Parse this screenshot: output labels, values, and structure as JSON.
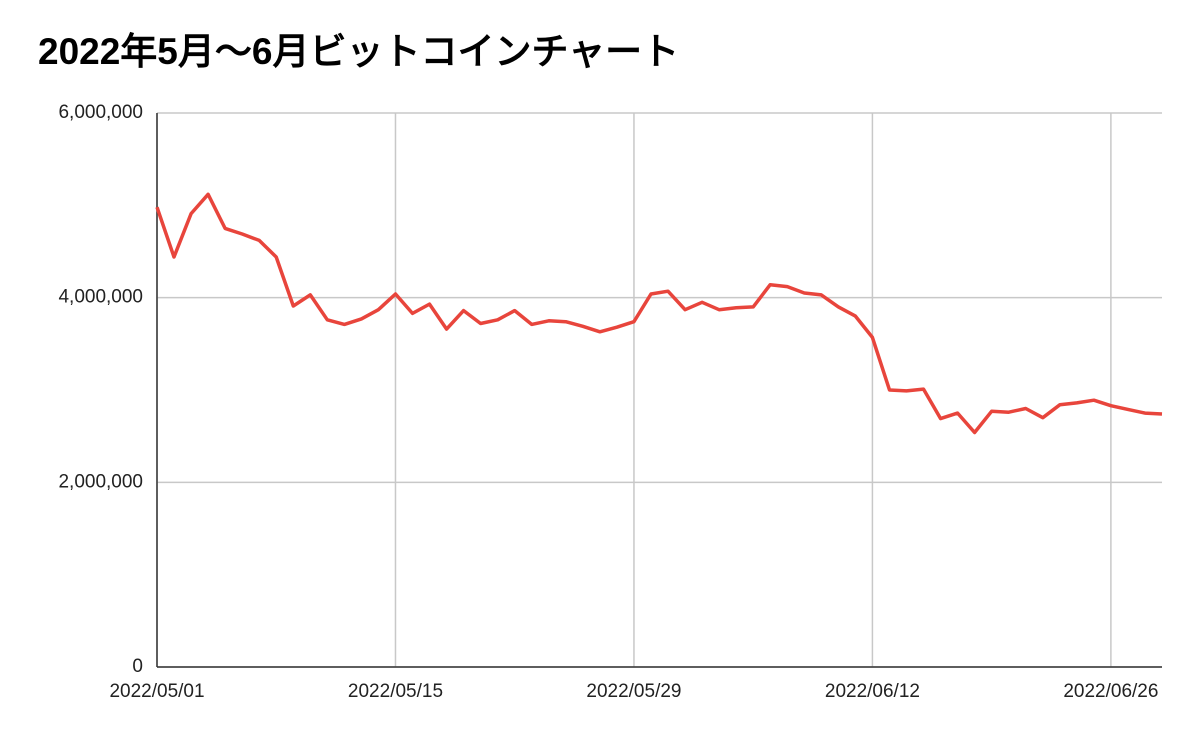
{
  "chart_data": {
    "type": "line",
    "title": "2022年5月〜6月ビットコインチャート",
    "x": [
      "2022/05/01",
      "2022/05/02",
      "2022/05/03",
      "2022/05/04",
      "2022/05/05",
      "2022/05/06",
      "2022/05/07",
      "2022/05/08",
      "2022/05/09",
      "2022/05/10",
      "2022/05/11",
      "2022/05/12",
      "2022/05/13",
      "2022/05/14",
      "2022/05/15",
      "2022/05/16",
      "2022/05/17",
      "2022/05/18",
      "2022/05/19",
      "2022/05/20",
      "2022/05/21",
      "2022/05/22",
      "2022/05/23",
      "2022/05/24",
      "2022/05/25",
      "2022/05/26",
      "2022/05/27",
      "2022/05/28",
      "2022/05/29",
      "2022/05/30",
      "2022/05/31",
      "2022/06/01",
      "2022/06/02",
      "2022/06/03",
      "2022/06/04",
      "2022/06/05",
      "2022/06/06",
      "2022/06/07",
      "2022/06/08",
      "2022/06/09",
      "2022/06/10",
      "2022/06/11",
      "2022/06/12",
      "2022/06/13",
      "2022/06/14",
      "2022/06/15",
      "2022/06/16",
      "2022/06/17",
      "2022/06/18",
      "2022/06/19",
      "2022/06/20",
      "2022/06/21",
      "2022/06/22",
      "2022/06/23",
      "2022/06/24",
      "2022/06/25",
      "2022/06/26",
      "2022/06/27",
      "2022/06/28",
      "2022/06/29"
    ],
    "series": [
      {
        "color": "#e8453c",
        "values": [
          4980000,
          4440000,
          4910000,
          5120000,
          4750000,
          4690000,
          4620000,
          4440000,
          3910000,
          4030000,
          3760000,
          3710000,
          3770000,
          3870000,
          4040000,
          3830000,
          3930000,
          3660000,
          3860000,
          3720000,
          3760000,
          3860000,
          3710000,
          3750000,
          3740000,
          3690000,
          3630000,
          3680000,
          3740000,
          4040000,
          4070000,
          3870000,
          3950000,
          3870000,
          3890000,
          3900000,
          4140000,
          4120000,
          4050000,
          4030000,
          3900000,
          3800000,
          3570000,
          3000000,
          2990000,
          3010000,
          2690000,
          2750000,
          2540000,
          2770000,
          2760000,
          2800000,
          2700000,
          2840000,
          2860000,
          2890000,
          2830000,
          2790000,
          2750000,
          2740000
        ]
      }
    ],
    "xlim": [
      "2022/05/01",
      "2022/06/29"
    ],
    "xticks": [
      "2022/05/01",
      "2022/05/15",
      "2022/05/29",
      "2022/06/12",
      "2022/06/26"
    ],
    "ylim": [
      0,
      6000000
    ],
    "yticks": [
      0,
      {
        "value": 2000000,
        "label": "2,000,000"
      },
      {
        "value": 4000000,
        "label": "4,000,000"
      },
      {
        "value": 6000000,
        "label": "6,000,000"
      }
    ],
    "grid": true
  }
}
